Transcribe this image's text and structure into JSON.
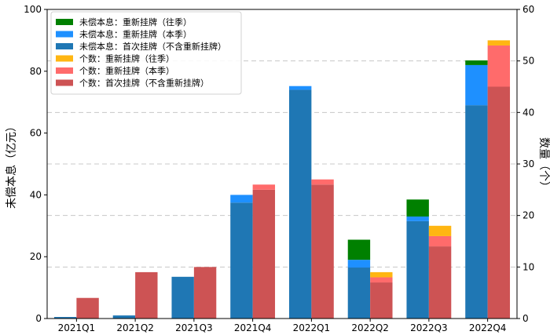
{
  "chart_data": {
    "type": "bar",
    "categories": [
      "2021Q1",
      "2021Q2",
      "2021Q3",
      "2021Q4",
      "2022Q1",
      "2022Q2",
      "2022Q3",
      "2022Q4"
    ],
    "left_axis": {
      "label": "未偿本息（亿元）",
      "lim": [
        0,
        100
      ],
      "ticks": [
        0,
        20,
        40,
        60,
        80,
        100
      ]
    },
    "right_axis": {
      "label": "数量（个）",
      "lim": [
        0,
        60
      ],
      "ticks": [
        0,
        10,
        20,
        30,
        40,
        50,
        60
      ]
    },
    "grid": "horizontal dashed (right axis)",
    "legend_position": "top-left",
    "amount_series": [
      {
        "name": "未偿本息：首次挂牌（不含重新挂牌）",
        "color": "#1f77b4",
        "values": [
          0.5,
          1.0,
          13.5,
          37.5,
          74.0,
          16.5,
          31.5,
          69.0
        ]
      },
      {
        "name": "未偿本息：重新挂牌（本季）",
        "color": "#1e90ff",
        "values": [
          0,
          0,
          0,
          2.5,
          1.2,
          2.5,
          1.5,
          13.0
        ]
      },
      {
        "name": "未偿本息：重新挂牌（往季）",
        "color": "#008000",
        "values": [
          0,
          0,
          0,
          0,
          0,
          6.5,
          5.5,
          1.5
        ]
      }
    ],
    "count_series": [
      {
        "name": "个数：首次挂牌（不含重新挂牌）",
        "color": "#cd5354",
        "values": [
          4,
          9,
          10,
          25,
          26,
          7,
          14,
          45
        ]
      },
      {
        "name": "个数：重新挂牌（本季）",
        "color": "#ff6b6b",
        "values": [
          0,
          0,
          0,
          1,
          1,
          1,
          2,
          8
        ]
      },
      {
        "name": "个数：重新挂牌（往季）",
        "color": "#ffb612",
        "values": [
          0,
          0,
          0,
          0,
          0,
          1,
          2,
          1
        ]
      }
    ],
    "legend_order": [
      "未偿本息：重新挂牌（往季）",
      "未偿本息：重新挂牌（本季）",
      "未偿本息：首次挂牌（不含重新挂牌）",
      "个数：重新挂牌（往季）",
      "个数：重新挂牌（本季）",
      "个数：首次挂牌（不含重新挂牌）"
    ]
  }
}
